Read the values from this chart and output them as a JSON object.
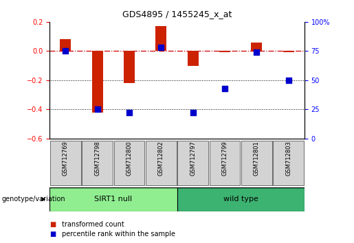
{
  "title": "GDS4895 / 1455245_x_at",
  "samples": [
    "GSM712769",
    "GSM712798",
    "GSM712800",
    "GSM712802",
    "GSM712797",
    "GSM712799",
    "GSM712801",
    "GSM712803"
  ],
  "transformed_count": [
    0.08,
    -0.42,
    -0.22,
    0.17,
    -0.1,
    -0.01,
    0.06,
    -0.01
  ],
  "percentile_rank": [
    75,
    25,
    22,
    78,
    22,
    43,
    74,
    50
  ],
  "group_labels": [
    "SIRT1 null",
    "wild type"
  ],
  "group_sizes": [
    4,
    4
  ],
  "group_color_1": "#90ee90",
  "group_color_2": "#3cb371",
  "bar_color": "#cc2200",
  "dot_color": "#0000cc",
  "left_ylim": [
    -0.6,
    0.2
  ],
  "right_ylim": [
    0,
    100
  ],
  "left_yticks": [
    -0.6,
    -0.4,
    -0.2,
    0.0,
    0.2
  ],
  "right_yticks": [
    0,
    25,
    50,
    75,
    100
  ],
  "right_yticklabels": [
    "0",
    "25",
    "50",
    "75",
    "100%"
  ],
  "hline_y": 0.0,
  "dotted_lines": [
    -0.2,
    -0.4
  ],
  "legend_items": [
    "transformed count",
    "percentile rank within the sample"
  ],
  "legend_colors": [
    "#cc2200",
    "#0000cc"
  ],
  "genotype_label": "genotype/variation",
  "background_color": "#ffffff",
  "bar_width": 0.35,
  "dot_size": 30,
  "title_fontsize": 9,
  "tick_fontsize": 7,
  "sample_fontsize": 6,
  "legend_fontsize": 7,
  "group_fontsize": 8,
  "genotype_fontsize": 7
}
